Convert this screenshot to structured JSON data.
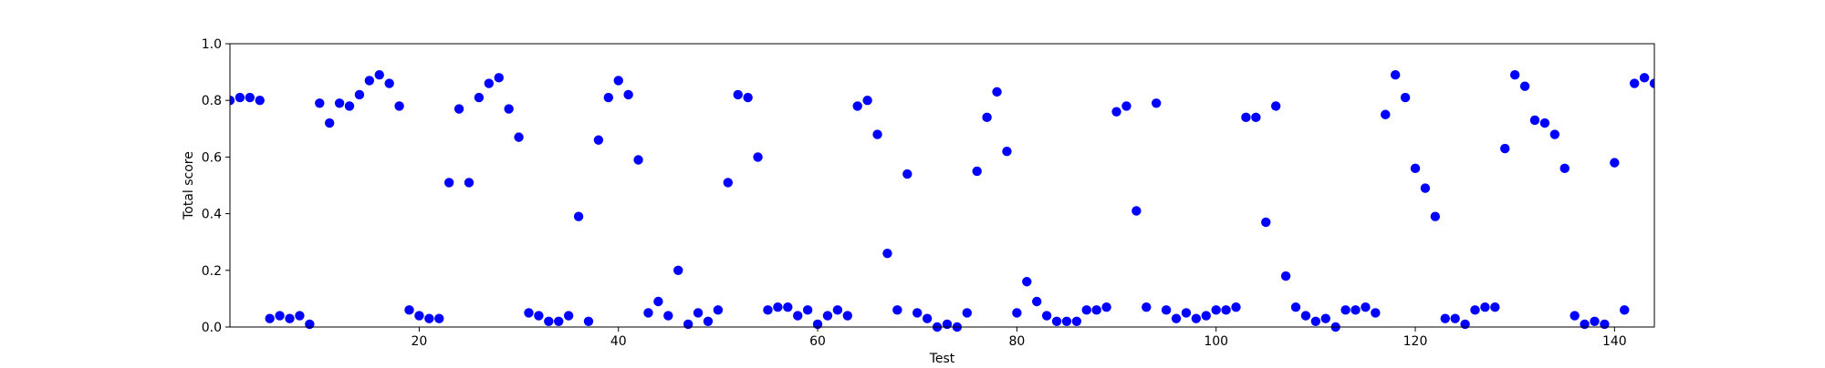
{
  "chart_data": {
    "type": "scatter",
    "title": "",
    "xlabel": "Test",
    "ylabel": "Total score",
    "xlim": [
      1,
      144
    ],
    "ylim": [
      0.0,
      1.0
    ],
    "grid": false,
    "legend": "none",
    "x_ticks": [
      20,
      40,
      60,
      80,
      100,
      120,
      140
    ],
    "x_tick_labels": [
      "20",
      "40",
      "60",
      "80",
      "100",
      "120",
      "140"
    ],
    "y_ticks": [
      0.0,
      0.2,
      0.4,
      0.6,
      0.8,
      1.0
    ],
    "y_tick_labels": [
      "0.0",
      "0.2",
      "0.4",
      "0.6",
      "0.8",
      "1.0"
    ],
    "marker_color": "#0000ff",
    "series": [
      {
        "x": [
          1,
          2,
          3,
          4,
          5,
          6,
          7,
          8,
          9,
          10,
          11,
          12,
          13,
          14,
          15,
          16,
          17,
          18,
          19,
          20,
          21,
          22,
          23,
          24,
          25,
          26,
          27,
          28,
          29,
          30,
          31,
          32,
          33,
          34,
          35,
          36,
          37,
          38,
          39,
          40,
          41,
          42,
          43,
          44,
          45,
          46,
          47,
          48,
          49,
          50,
          51,
          52,
          53,
          54,
          55,
          56,
          57,
          58,
          59,
          60,
          61,
          62,
          63,
          64,
          65,
          66,
          67,
          68,
          69,
          70,
          71,
          72,
          73,
          74,
          75,
          76,
          77,
          78,
          79,
          80,
          81,
          82,
          83,
          84,
          85,
          86,
          87,
          88,
          89,
          90,
          91,
          92,
          93,
          94,
          95,
          96,
          97,
          98,
          99,
          100,
          101,
          102,
          103,
          104,
          105,
          106,
          107,
          108,
          109,
          110,
          111,
          112,
          113,
          114,
          115,
          116,
          117,
          118,
          119,
          120,
          121,
          122,
          123,
          124,
          125,
          126,
          127,
          128,
          129,
          130,
          131,
          132,
          133,
          134,
          135,
          136,
          137,
          138,
          139,
          140,
          141,
          142,
          143,
          144
        ],
        "y": [
          0.8,
          0.81,
          0.81,
          0.8,
          0.03,
          0.04,
          0.03,
          0.04,
          0.01,
          0.79,
          0.72,
          0.79,
          0.78,
          0.82,
          0.87,
          0.89,
          0.86,
          0.78,
          0.06,
          0.04,
          0.03,
          0.03,
          0.51,
          0.77,
          0.51,
          0.81,
          0.86,
          0.88,
          0.77,
          0.67,
          0.05,
          0.04,
          0.02,
          0.02,
          0.04,
          0.39,
          0.02,
          0.66,
          0.81,
          0.87,
          0.82,
          0.59,
          0.05,
          0.09,
          0.04,
          0.2,
          0.01,
          0.05,
          0.02,
          0.06,
          0.51,
          0.82,
          0.81,
          0.6,
          0.06,
          0.07,
          0.07,
          0.04,
          0.06,
          0.01,
          0.04,
          0.06,
          0.04,
          0.78,
          0.8,
          0.68,
          0.26,
          0.06,
          0.54,
          0.05,
          0.03,
          0.0,
          0.01,
          0.0,
          0.05,
          0.55,
          0.74,
          0.83,
          0.62,
          0.05,
          0.16,
          0.09,
          0.04,
          0.02,
          0.02,
          0.02,
          0.06,
          0.06,
          0.07,
          0.76,
          0.78,
          0.41,
          0.07,
          0.79,
          0.06,
          0.03,
          0.05,
          0.03,
          0.04,
          0.06,
          0.06,
          0.07,
          0.74,
          0.74,
          0.37,
          0.78,
          0.18,
          0.07,
          0.04,
          0.02,
          0.03,
          0.0,
          0.06,
          0.06,
          0.07,
          0.05,
          0.75,
          0.89,
          0.81,
          0.56,
          0.49,
          0.39,
          0.03,
          0.03,
          0.01,
          0.06,
          0.07,
          0.07,
          0.63,
          0.89,
          0.85,
          0.73,
          0.72,
          0.68,
          0.56,
          0.04,
          0.01,
          0.02,
          0.01,
          0.58,
          0.06,
          0.86,
          0.88,
          0.86
        ]
      }
    ]
  }
}
